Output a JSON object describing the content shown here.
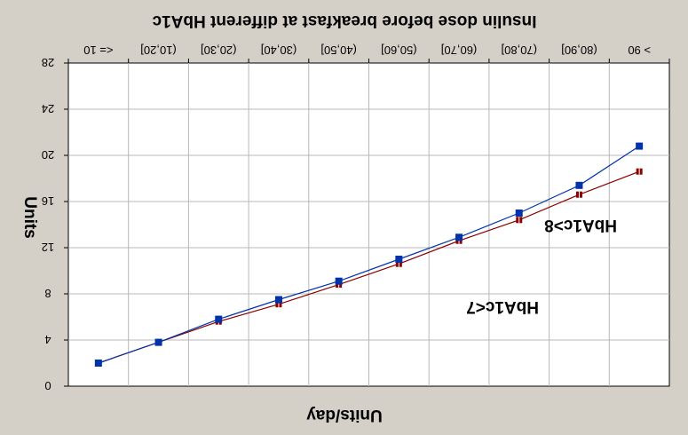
{
  "chart_data": {
    "type": "line",
    "title": "Insulin dose before breakfast at different HbA1c",
    "xlabel": "Units/day",
    "ylabel": "Units",
    "categories": [
      "<= 10",
      "(10,20]",
      "(20,30]",
      "(30,40]",
      "(40,50]",
      "(50,60]",
      "(60,70]",
      "(70,80]",
      "(80,90]",
      "> 90"
    ],
    "ylim": [
      0,
      28
    ],
    "yticks": [
      0,
      4,
      8,
      12,
      16,
      20,
      24,
      28
    ],
    "grid": true,
    "series": [
      {
        "name": "HbA1c<7",
        "label": "HbA1c<7",
        "color": "#0033aa",
        "marker": "square",
        "values": [
          2.0,
          3.8,
          5.8,
          7.5,
          9.1,
          11.0,
          12.9,
          15.0,
          17.4,
          20.8
        ]
      },
      {
        "name": "HbA1c>8",
        "label": "HbA1c>8",
        "color": "#8b0000",
        "marker": "bar",
        "values": [
          2.0,
          3.8,
          5.6,
          7.1,
          8.8,
          10.6,
          12.6,
          14.4,
          16.6,
          18.6
        ]
      }
    ]
  }
}
